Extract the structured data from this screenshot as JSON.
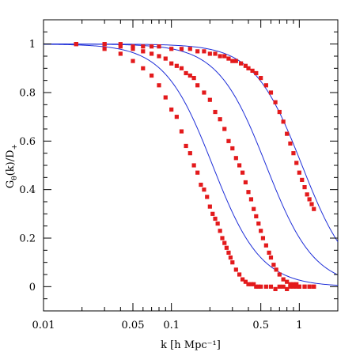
{
  "chart_data": {
    "type": "scatter",
    "xlabel": "k [h Mpc⁻¹]",
    "ylabel_main": "G",
    "ylabel_sub": "θ",
    "ylabel_rest": "(k)/D",
    "ylabel_subscript2": "+",
    "x_scale": "log",
    "xlim": [
      0.01,
      2.0
    ],
    "ylim": [
      -0.1,
      1.1
    ],
    "grid": false,
    "x_tick_labels": [
      "0.01",
      "0.05",
      "0.1",
      "0.5",
      "1"
    ],
    "x_ticks": [
      0.01,
      0.05,
      0.1,
      0.5,
      1
    ],
    "y_tick_labels": [
      "0",
      "0.2",
      "0.4",
      "0.6",
      "0.8",
      "1"
    ],
    "y_ticks": [
      0,
      0.2,
      0.4,
      0.6,
      0.8,
      1
    ],
    "colors": {
      "points": "#e31a1c",
      "curves": "#1f2fd8"
    },
    "curves": [
      {
        "k_half": 0.21,
        "power": 2.3
      },
      {
        "k_half": 0.55,
        "power": 2.3
      },
      {
        "k_half": 1.05,
        "power": 2.3
      }
    ],
    "series": [
      {
        "x": [
          0.018,
          0.03,
          0.04,
          0.05,
          0.06,
          0.07,
          0.08,
          0.09,
          0.1,
          0.11,
          0.12,
          0.13,
          0.14,
          0.15,
          0.16,
          0.17,
          0.18,
          0.19,
          0.2,
          0.21,
          0.22,
          0.23,
          0.24,
          0.25,
          0.26,
          0.27,
          0.28,
          0.29,
          0.3,
          0.32,
          0.34,
          0.36,
          0.38,
          0.4,
          0.42,
          0.44,
          0.46,
          0.48,
          0.5,
          0.55,
          0.6,
          0.65,
          0.7,
          0.75,
          0.8,
          0.85,
          0.9,
          0.95,
          1.0,
          1.1,
          1.2,
          1.3
        ],
        "y": [
          1.0,
          0.98,
          0.96,
          0.93,
          0.9,
          0.87,
          0.83,
          0.78,
          0.73,
          0.7,
          0.64,
          0.58,
          0.55,
          0.5,
          0.47,
          0.42,
          0.4,
          0.37,
          0.33,
          0.3,
          0.28,
          0.26,
          0.23,
          0.2,
          0.18,
          0.16,
          0.14,
          0.12,
          0.1,
          0.07,
          0.05,
          0.03,
          0.02,
          0.01,
          0.01,
          0.01,
          0.0,
          0.0,
          0.0,
          0.0,
          0.0,
          -0.01,
          0.0,
          0.0,
          -0.01,
          0.0,
          0.0,
          0.0,
          0.0,
          0.0,
          0.0,
          0.0
        ]
      },
      {
        "x": [
          0.018,
          0.03,
          0.04,
          0.05,
          0.06,
          0.07,
          0.08,
          0.09,
          0.1,
          0.11,
          0.12,
          0.13,
          0.14,
          0.15,
          0.16,
          0.18,
          0.2,
          0.22,
          0.24,
          0.26,
          0.28,
          0.3,
          0.32,
          0.34,
          0.36,
          0.38,
          0.4,
          0.42,
          0.44,
          0.46,
          0.48,
          0.5,
          0.52,
          0.55,
          0.58,
          0.6,
          0.63,
          0.66,
          0.7,
          0.75,
          0.8,
          0.85,
          0.9,
          0.95,
          1.0,
          1.1,
          1.2,
          1.3
        ],
        "y": [
          1.0,
          1.0,
          0.99,
          0.98,
          0.97,
          0.96,
          0.95,
          0.94,
          0.92,
          0.91,
          0.9,
          0.88,
          0.87,
          0.86,
          0.83,
          0.8,
          0.77,
          0.72,
          0.69,
          0.65,
          0.6,
          0.57,
          0.53,
          0.5,
          0.47,
          0.43,
          0.39,
          0.36,
          0.32,
          0.29,
          0.26,
          0.23,
          0.2,
          0.17,
          0.14,
          0.12,
          0.09,
          0.07,
          0.05,
          0.03,
          0.02,
          0.01,
          0.01,
          0.01,
          0.0,
          0.0,
          0.0,
          0.0
        ]
      },
      {
        "x": [
          0.018,
          0.03,
          0.04,
          0.05,
          0.06,
          0.07,
          0.08,
          0.1,
          0.12,
          0.14,
          0.16,
          0.18,
          0.2,
          0.22,
          0.24,
          0.26,
          0.28,
          0.3,
          0.32,
          0.35,
          0.38,
          0.4,
          0.43,
          0.46,
          0.5,
          0.55,
          0.6,
          0.65,
          0.7,
          0.75,
          0.8,
          0.85,
          0.9,
          0.95,
          1.0,
          1.05,
          1.1,
          1.15,
          1.2,
          1.25,
          1.3
        ],
        "y": [
          1.0,
          1.0,
          1.0,
          0.99,
          0.99,
          0.99,
          0.99,
          0.98,
          0.98,
          0.98,
          0.97,
          0.97,
          0.96,
          0.96,
          0.95,
          0.95,
          0.94,
          0.93,
          0.93,
          0.92,
          0.91,
          0.9,
          0.89,
          0.88,
          0.86,
          0.83,
          0.8,
          0.76,
          0.72,
          0.68,
          0.63,
          0.59,
          0.55,
          0.51,
          0.47,
          0.44,
          0.41,
          0.38,
          0.36,
          0.34,
          0.32
        ]
      }
    ]
  }
}
